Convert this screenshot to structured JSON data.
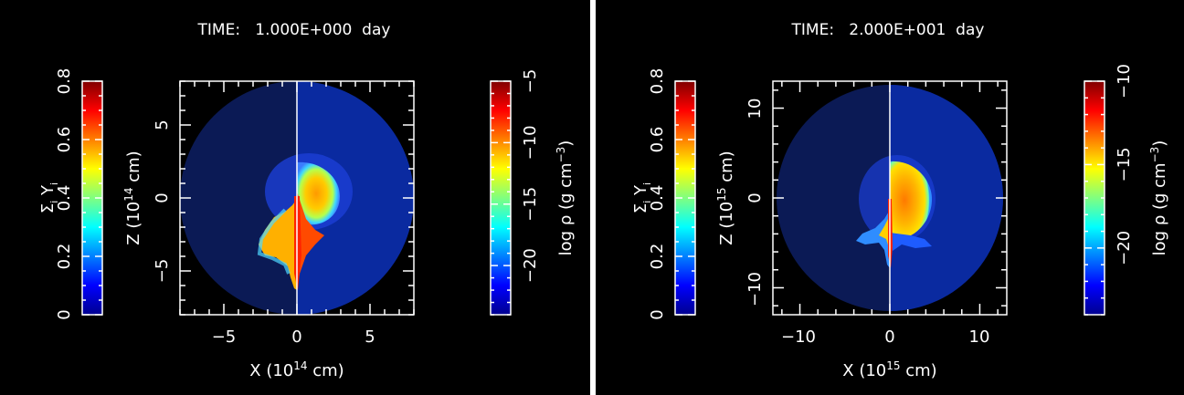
{
  "chart_data": [
    {
      "type": "heatmap",
      "title": "TIME:   1.000E+000  day",
      "xlabel": "X (10^14 cm)",
      "ylabel": "Z (10^14 cm)",
      "xlim": [
        -8,
        8
      ],
      "ylim": [
        -8,
        8
      ],
      "xticks": [
        "−5",
        "0",
        "5"
      ],
      "yticks": [
        "−5",
        "0",
        "5"
      ],
      "left_colorbar": {
        "label": "Σi Yi",
        "range": [
          0,
          0.8
        ],
        "ticks": [
          "0",
          "0.2",
          "0.4",
          "0.6",
          "0.8"
        ]
      },
      "right_colorbar": {
        "label": "log ρ (g cm^-3)",
        "range": [
          -24,
          -5
        ],
        "ticks": [
          "−20",
          "−15",
          "−10",
          "−5"
        ]
      },
      "left_half": "Σi Yi",
      "right_half": "log ρ"
    },
    {
      "type": "heatmap",
      "title": "TIME:   2.000E+001  day",
      "xlabel": "X (10^15 cm)",
      "ylabel": "Z (10^15 cm)",
      "xlim": [
        -13,
        13
      ],
      "ylim": [
        -13,
        13
      ],
      "xticks": [
        "−10",
        "0",
        "10"
      ],
      "yticks": [
        "−10",
        "0",
        "10"
      ],
      "left_colorbar": {
        "label": "Σi Yi",
        "range": [
          0,
          0.8
        ],
        "ticks": [
          "0",
          "0.2",
          "0.4",
          "0.6",
          "0.8"
        ]
      },
      "right_colorbar": {
        "label": "log ρ (g cm^-3)",
        "range": [
          -24,
          -10
        ],
        "ticks": [
          "−20",
          "−15",
          "−10"
        ]
      },
      "left_half": "Σi Yi",
      "right_half": "log ρ"
    }
  ],
  "colors": {
    "background": "#000000",
    "frame": "#ffffff",
    "disk_left": "#0b1a55",
    "disk_right": "#0a2aa0"
  }
}
